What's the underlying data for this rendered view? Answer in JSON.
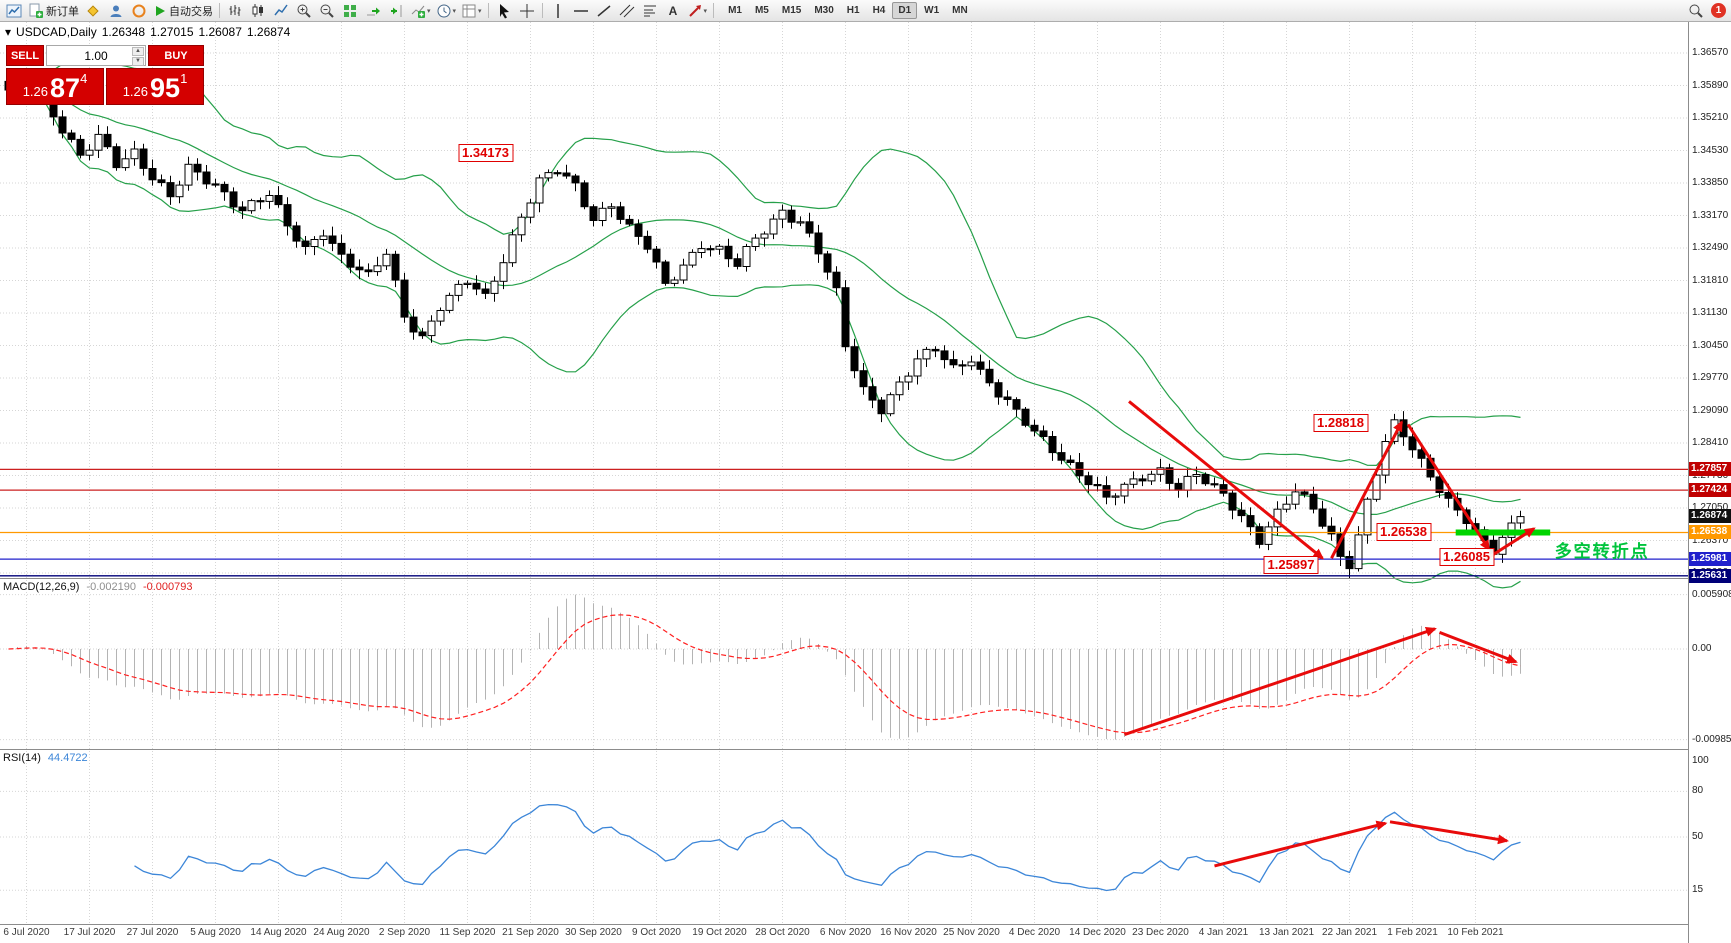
{
  "toolbar": {
    "new_order_label": "新订单",
    "autotrading_label": "自动交易",
    "timeframes": [
      "M1",
      "M5",
      "M15",
      "M30",
      "H1",
      "H4",
      "D1",
      "W1",
      "MN"
    ],
    "active_timeframe": "D1",
    "notification_count": "1"
  },
  "chart": {
    "title": "USDCAD,Daily",
    "ohlc_line": {
      "open": "1.26348",
      "high": "1.27015",
      "low": "1.26087",
      "close": "1.26874"
    },
    "one_click": {
      "sell_label": "SELL",
      "buy_label": "BUY",
      "lot": "1.00",
      "bid_small": "1.26",
      "bid_big": "87",
      "bid_sup": "4",
      "ask_small": "1.26",
      "ask_big": "95",
      "ask_sup": "1"
    },
    "price_axis_labels": [
      "1.36570",
      "1.35890",
      "1.35210",
      "1.34530",
      "1.33850",
      "1.33170",
      "1.32490",
      "1.31810",
      "1.31130",
      "1.30450",
      "1.29770",
      "1.29090",
      "1.28410",
      "1.27730",
      "1.27050",
      "1.26370",
      "1.25690"
    ],
    "badges": [
      {
        "text": "1.27857",
        "price": 1.27857,
        "color": "#c00000"
      },
      {
        "text": "1.27424",
        "price": 1.27424,
        "color": "#c00000"
      },
      {
        "text": "1.26874",
        "price": 1.26874,
        "color": "#101010"
      },
      {
        "text": "1.26538",
        "price": 1.26538,
        "color": "#ff9900"
      },
      {
        "text": "1.25981",
        "price": 1.25981,
        "color": "#2020cc"
      },
      {
        "text": "1.25631",
        "price": 1.25631,
        "color": "#000078"
      }
    ],
    "hlines": [
      {
        "price": 1.27857,
        "color": "#cc2020"
      },
      {
        "price": 1.27424,
        "color": "#cc2020"
      },
      {
        "price": 1.26538,
        "color": "#ff9900"
      },
      {
        "price": 1.25981,
        "color": "#2020cc"
      },
      {
        "price": 1.25631,
        "color": "#000078"
      }
    ],
    "annotations": {
      "price_labels": [
        {
          "text": "1.34173",
          "bar": 53,
          "price": 1.3448
        },
        {
          "text": "1.28818",
          "bar": 148,
          "price": 1.2882
        },
        {
          "text": "1.26538",
          "bar": 155,
          "price": 1.2654
        },
        {
          "text": "1.25897",
          "bar": 142.5,
          "price": 1.2586
        },
        {
          "text": "1.26085",
          "bar": 162,
          "price": 1.2602
        }
      ],
      "arrows": [
        {
          "from": [
            124.5,
            1.2928
          ],
          "to": [
            146,
            1.26
          ]
        },
        {
          "from": [
            147,
            1.26
          ],
          "to": [
            154.8,
            1.2885
          ]
        },
        {
          "from": [
            155.5,
            1.288
          ],
          "to": [
            164.5,
            1.2618
          ]
        },
        {
          "from": [
            164.0,
            1.2596
          ],
          "to": [
            169.5,
            1.2662
          ]
        }
      ],
      "green_line": {
        "price": 1.26538,
        "bar_from": 160.8,
        "bar_to": 171.3,
        "color": "#00d400"
      },
      "pivot_text": {
        "text": "多空转折点",
        "bar": 171.8,
        "price": 1.2624,
        "color": "#00c43c"
      }
    },
    "colors": {
      "grid": "#d6d6d6",
      "candle_up": "#ffffff",
      "candle_down": "#000000",
      "candle_line": "#000000",
      "bands": "#26a04a",
      "arrow": "#e80b0b"
    }
  },
  "chart_data": {
    "type": "candlestick",
    "symbol": "USDCAD",
    "period": "Daily",
    "bars": 169,
    "close_anchors": [
      [
        0,
        1.3575
      ],
      [
        2,
        1.36
      ],
      [
        4,
        1.356
      ],
      [
        6,
        1.35
      ],
      [
        8,
        1.3438
      ],
      [
        10,
        1.3478
      ],
      [
        12,
        1.3425
      ],
      [
        14,
        1.3452
      ],
      [
        16,
        1.34
      ],
      [
        18,
        1.3356
      ],
      [
        20,
        1.3412
      ],
      [
        23,
        1.338
      ],
      [
        26,
        1.3332
      ],
      [
        29,
        1.336
      ],
      [
        31,
        1.3292
      ],
      [
        33,
        1.3246
      ],
      [
        35,
        1.3288
      ],
      [
        37,
        1.3232
      ],
      [
        40,
        1.3186
      ],
      [
        42,
        1.3238
      ],
      [
        44,
        1.3108
      ],
      [
        46,
        1.3064
      ],
      [
        48,
        1.3128
      ],
      [
        51,
        1.3178
      ],
      [
        53,
        1.3144
      ],
      [
        55,
        1.3228
      ],
      [
        57,
        1.3318
      ],
      [
        59,
        1.3388
      ],
      [
        61,
        1.341
      ],
      [
        63,
        1.3376
      ],
      [
        65,
        1.3312
      ],
      [
        67,
        1.3344
      ],
      [
        69,
        1.329
      ],
      [
        71,
        1.325
      ],
      [
        73,
        1.3168
      ],
      [
        75,
        1.3214
      ],
      [
        77,
        1.326
      ],
      [
        79,
        1.3244
      ],
      [
        81,
        1.3212
      ],
      [
        83,
        1.3266
      ],
      [
        85,
        1.3306
      ],
      [
        86,
        1.3328
      ],
      [
        88,
        1.3306
      ],
      [
        90,
        1.3242
      ],
      [
        92,
        1.3152
      ],
      [
        93,
        1.3042
      ],
      [
        95,
        1.2952
      ],
      [
        97,
        1.2916
      ],
      [
        99,
        1.2966
      ],
      [
        101,
        1.3012
      ],
      [
        103,
        1.3036
      ],
      [
        105,
        1.2996
      ],
      [
        107,
        1.3022
      ],
      [
        108,
        1.2992
      ],
      [
        110,
        1.2946
      ],
      [
        112,
        1.2902
      ],
      [
        114,
        1.2862
      ],
      [
        116,
        1.283
      ],
      [
        118,
        1.2796
      ],
      [
        120,
        1.2762
      ],
      [
        122,
        1.2722
      ],
      [
        124,
        1.2746
      ],
      [
        126,
        1.2772
      ],
      [
        128,
        1.2786
      ],
      [
        130,
        1.2748
      ],
      [
        132,
        1.2774
      ],
      [
        134,
        1.2742
      ],
      [
        135,
        1.2732
      ],
      [
        137,
        1.2688
      ],
      [
        139,
        1.2642
      ],
      [
        141,
        1.2694
      ],
      [
        143,
        1.2738
      ],
      [
        145,
        1.2702
      ],
      [
        147,
        1.2646
      ],
      [
        148,
        1.2606
      ],
      [
        149,
        1.2592
      ],
      [
        150,
        1.2648
      ],
      [
        151,
        1.2718
      ],
      [
        152,
        1.278
      ],
      [
        153,
        1.284
      ],
      [
        154,
        1.2876
      ],
      [
        155,
        1.2856
      ],
      [
        156,
        1.283
      ],
      [
        157,
        1.2802
      ],
      [
        158,
        1.2776
      ],
      [
        159,
        1.275
      ],
      [
        160,
        1.2722
      ],
      [
        161,
        1.27
      ],
      [
        162,
        1.268
      ],
      [
        163,
        1.2652
      ],
      [
        164,
        1.2626
      ],
      [
        165,
        1.2612
      ],
      [
        166,
        1.2642
      ],
      [
        167,
        1.2666
      ],
      [
        168,
        1.2687
      ]
    ],
    "x_ticks": {
      "labels": [
        "6 Jul 2020",
        "17 Jul 2020",
        "27 Jul 2020",
        "5 Aug 2020",
        "14 Aug 2020",
        "24 Aug 2020",
        "2 Sep 2020",
        "11 Sep 2020",
        "21 Sep 2020",
        "30 Sep 2020",
        "9 Oct 2020",
        "19 Oct 2020",
        "28 Oct 2020",
        "6 Nov 2020",
        "16 Nov 2020",
        "25 Nov 2020",
        "4 Dec 2020",
        "14 Dec 2020",
        "23 Dec 2020",
        "4 Jan 2021",
        "13 Jan 2021",
        "22 Jan 2021",
        "1 Feb 2021",
        "10 Feb 2021"
      ],
      "first_bar": 2,
      "every": 7
    },
    "price_range": {
      "top_label": 1.3657,
      "label_step": 0.0068,
      "labels_count": 17
    },
    "indicators": {
      "bollinger": {
        "period": 20,
        "deviation": 2
      },
      "macd": {
        "label": "MACD(12,26,9)",
        "value_main": "-0.002190",
        "value_signal": "-0.000793",
        "axis": [
          {
            "text": "0.005908",
            "value": 0.005908
          },
          {
            "text": "0.00",
            "value": 0
          },
          {
            "text": "-0.009851",
            "value": -0.009851
          }
        ],
        "hist_color": "#b4b4b4",
        "signal_color": "#ff2020",
        "arrows": [
          {
            "from": [
              124,
              -0.0093
            ],
            "to": [
              158.5,
              0.0022
            ]
          },
          {
            "from": [
              159,
              0.0018
            ],
            "to": [
              167.5,
              -0.0014
            ]
          }
        ]
      },
      "rsi": {
        "label": "RSI(14)",
        "value": "44.4722",
        "line_color": "#3c86d8",
        "axis": [
          {
            "text": "100",
            "value": 100
          },
          {
            "text": "80",
            "value": 80
          },
          {
            "text": "50",
            "value": 50
          },
          {
            "text": "15",
            "value": 15
          }
        ],
        "levels": [
          80,
          50,
          15
        ],
        "arrows": [
          {
            "from": [
              134,
              31
            ],
            "to": [
              153,
              59
            ]
          },
          {
            "from": [
              153.5,
              60
            ],
            "to": [
              166.5,
              47.5
            ]
          }
        ]
      }
    }
  }
}
